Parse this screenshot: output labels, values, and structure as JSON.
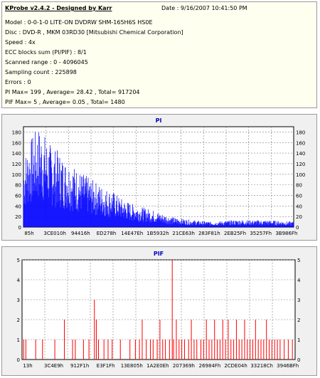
{
  "header": {
    "title": "KProbe v2.4.2 - Designed by Karr",
    "date": "Date : 9/16/2007 10:41:50 PM",
    "lines": [
      "Model : 0-0-1-0 LITE-ON DVDRW SHM-165H6S HS0E",
      "Disc : DVD-R , MKM 03RD30  [Mitsubishi Chemical Corporation]",
      "Speed : 4x",
      "ECC blocks sum (PI/PIF) : 8/1",
      "Scanned range : 0 - 4096045",
      "Sampling count : 225898",
      "Errors : 0",
      "PI Max= 199 , Average= 28.42 , Total= 917204",
      "PIF Max= 5 , Average= 0.05 , Total= 1480"
    ]
  },
  "chart_data": [
    {
      "type": "bar",
      "title": "PI",
      "ylim": [
        0,
        190
      ],
      "yticks": [
        0,
        20,
        40,
        60,
        80,
        100,
        120,
        140,
        160,
        180
      ],
      "xtick_labels": [
        "85h",
        "3CE010h",
        "94416h",
        "ED278h",
        "14E47Eh",
        "1B5932h",
        "21CE63h",
        "283F81h",
        "2EB25Fh",
        "35257Fh",
        "3B986Fh"
      ],
      "envelope": [
        [
          0.0,
          130
        ],
        [
          0.02,
          160
        ],
        [
          0.04,
          180
        ],
        [
          0.055,
          190
        ],
        [
          0.07,
          185
        ],
        [
          0.09,
          165
        ],
        [
          0.11,
          150
        ],
        [
          0.13,
          145
        ],
        [
          0.15,
          130
        ],
        [
          0.18,
          120
        ],
        [
          0.21,
          105
        ],
        [
          0.24,
          95
        ],
        [
          0.27,
          85
        ],
        [
          0.3,
          75
        ],
        [
          0.33,
          68
        ],
        [
          0.36,
          55
        ],
        [
          0.4,
          45
        ],
        [
          0.44,
          38
        ],
        [
          0.48,
          32
        ],
        [
          0.52,
          24
        ],
        [
          0.56,
          18
        ],
        [
          0.6,
          15
        ],
        [
          0.65,
          12
        ],
        [
          0.7,
          10
        ],
        [
          0.75,
          12
        ],
        [
          0.8,
          14
        ],
        [
          0.85,
          13
        ],
        [
          0.9,
          13
        ],
        [
          0.95,
          12
        ],
        [
          1.0,
          10
        ]
      ],
      "color": "#0000ff",
      "grid": true
    },
    {
      "type": "bar",
      "title": "PIF",
      "ylim": [
        0,
        5
      ],
      "yticks": [
        0,
        1,
        2,
        3,
        4,
        5
      ],
      "xtick_labels": [
        "13h",
        "3C4E9h",
        "912F1h",
        "E3F1Fh",
        "13E805h",
        "1A2E0Eh",
        "207369h",
        "26984Fh",
        "2CDE04h",
        "33218Ch",
        "3946BFh"
      ],
      "spikes": [
        [
          0.006,
          1
        ],
        [
          0.014,
          1
        ],
        [
          0.05,
          1
        ],
        [
          0.075,
          1
        ],
        [
          0.12,
          1
        ],
        [
          0.155,
          2
        ],
        [
          0.185,
          1
        ],
        [
          0.195,
          1
        ],
        [
          0.225,
          1
        ],
        [
          0.245,
          1
        ],
        [
          0.265,
          3
        ],
        [
          0.272,
          2
        ],
        [
          0.28,
          1
        ],
        [
          0.3,
          1
        ],
        [
          0.315,
          1
        ],
        [
          0.33,
          1
        ],
        [
          0.36,
          1
        ],
        [
          0.395,
          1
        ],
        [
          0.415,
          1
        ],
        [
          0.43,
          1
        ],
        [
          0.44,
          2
        ],
        [
          0.455,
          1
        ],
        [
          0.47,
          1
        ],
        [
          0.48,
          1
        ],
        [
          0.495,
          1
        ],
        [
          0.505,
          2
        ],
        [
          0.515,
          1
        ],
        [
          0.525,
          1
        ],
        [
          0.54,
          1
        ],
        [
          0.55,
          5
        ],
        [
          0.555,
          1
        ],
        [
          0.565,
          2
        ],
        [
          0.575,
          1
        ],
        [
          0.585,
          1
        ],
        [
          0.595,
          1
        ],
        [
          0.61,
          1
        ],
        [
          0.62,
          2
        ],
        [
          0.63,
          1
        ],
        [
          0.64,
          1
        ],
        [
          0.655,
          1
        ],
        [
          0.665,
          1
        ],
        [
          0.675,
          2
        ],
        [
          0.685,
          1
        ],
        [
          0.695,
          1
        ],
        [
          0.705,
          2
        ],
        [
          0.715,
          1
        ],
        [
          0.725,
          1
        ],
        [
          0.735,
          2
        ],
        [
          0.745,
          1
        ],
        [
          0.755,
          2
        ],
        [
          0.765,
          1
        ],
        [
          0.775,
          1
        ],
        [
          0.785,
          2
        ],
        [
          0.795,
          1
        ],
        [
          0.805,
          1
        ],
        [
          0.815,
          2
        ],
        [
          0.825,
          1
        ],
        [
          0.835,
          1
        ],
        [
          0.845,
          1
        ],
        [
          0.855,
          2
        ],
        [
          0.865,
          1
        ],
        [
          0.875,
          1
        ],
        [
          0.885,
          1
        ],
        [
          0.895,
          2
        ],
        [
          0.905,
          1
        ],
        [
          0.915,
          1
        ],
        [
          0.925,
          1
        ],
        [
          0.935,
          1
        ],
        [
          0.945,
          1
        ],
        [
          0.96,
          1
        ],
        [
          0.975,
          1
        ],
        [
          0.99,
          1
        ]
      ],
      "color": "#ff0000",
      "grid": true
    }
  ]
}
